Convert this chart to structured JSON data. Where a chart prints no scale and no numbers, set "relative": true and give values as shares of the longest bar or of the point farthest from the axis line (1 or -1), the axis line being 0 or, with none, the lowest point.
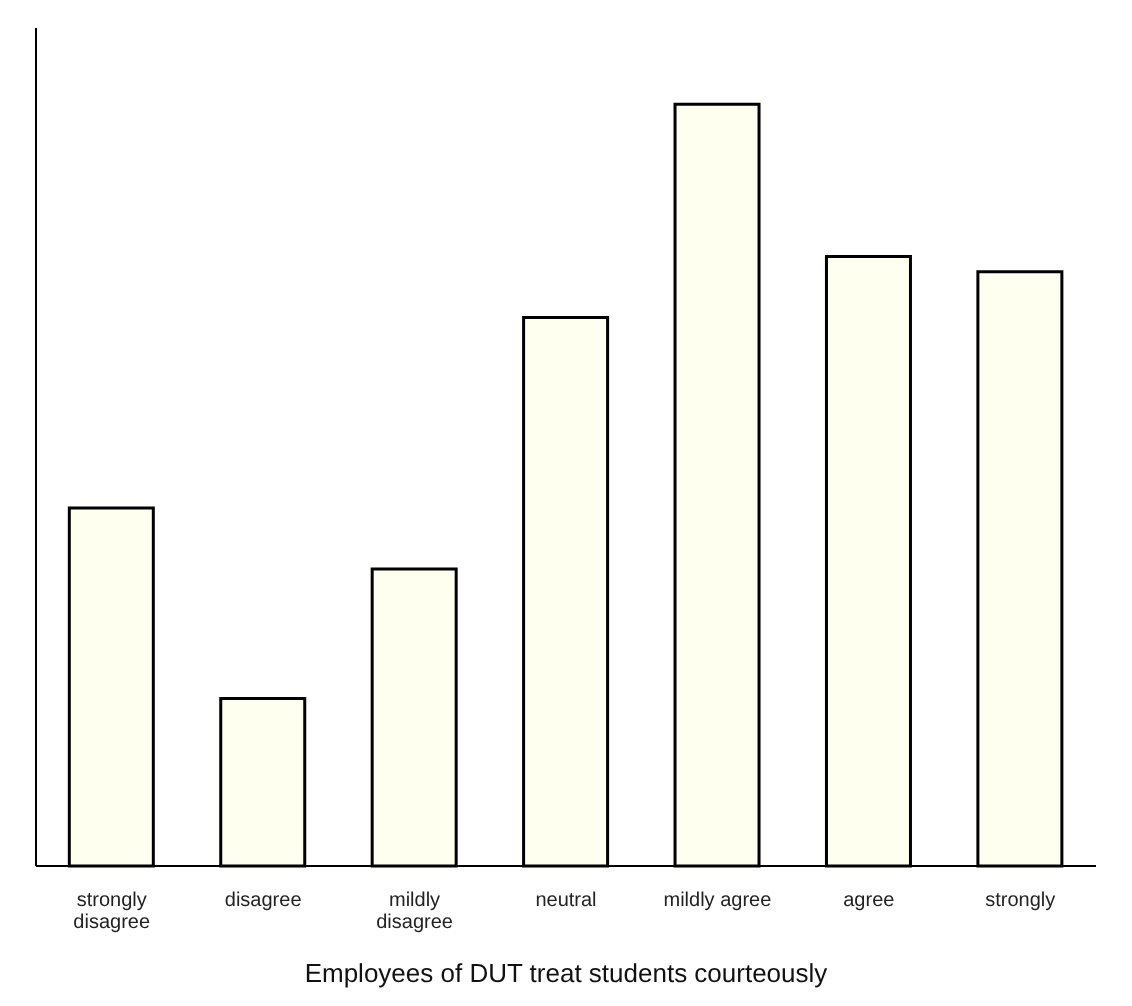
{
  "chart_data": {
    "type": "bar",
    "relative": true,
    "xlabel": "Employees of DUT treat students courteously",
    "categories": [
      "strongly\ndisagree",
      "disagree",
      "mildly\ndisagree",
      "neutral",
      "mildly agree",
      "agree",
      "strongly"
    ],
    "values": [
      0.47,
      0.22,
      0.39,
      0.72,
      1,
      0.8,
      0.78
    ],
    "color": "#fffff0",
    "grid": false
  }
}
